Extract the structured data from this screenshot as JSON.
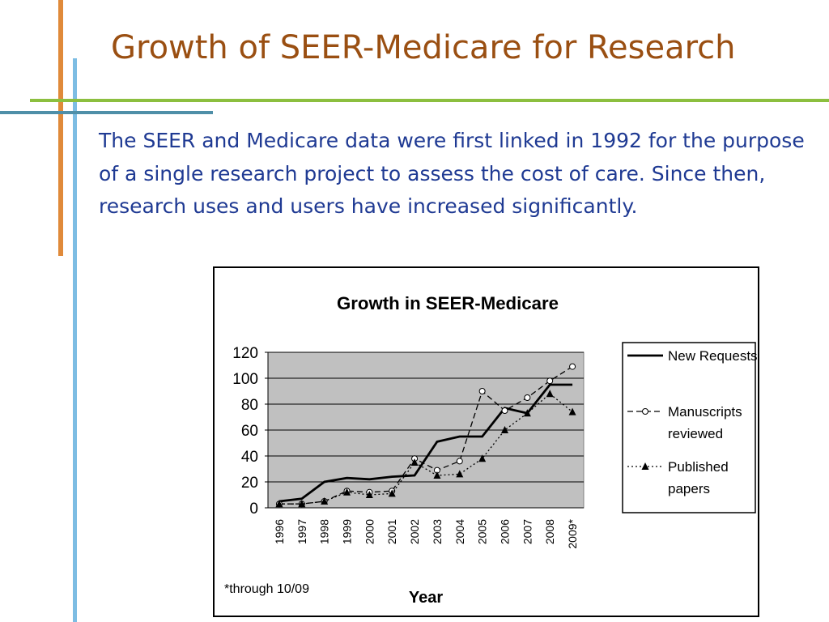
{
  "slide": {
    "title": "Growth of SEER-Medicare for Research",
    "body": "The SEER and Medicare data were first linked in 1992 for the purpose of a single research project to assess the cost of care. Since then, research uses and users  have increased significantly."
  },
  "colors": {
    "title": "#9a4f12",
    "body": "#1f3a93",
    "accent_orange": "#e08a3a",
    "accent_green": "#8cbf3f",
    "accent_blue": "#7dbde3",
    "accent_teal": "#4f8fa8",
    "plot_background": "#c0c0c0"
  },
  "chart_data": {
    "type": "line",
    "title": "Growth in SEER-Medicare",
    "xlabel": "Year",
    "ylabel": "",
    "categories": [
      "1996",
      "1997",
      "1998",
      "1999",
      "2000",
      "2001",
      "2002",
      "2003",
      "2004",
      "2005",
      "2006",
      "2007",
      "2008",
      "2009*"
    ],
    "ylim": [
      0,
      120
    ],
    "yticks": [
      0,
      20,
      40,
      60,
      80,
      100,
      120
    ],
    "grid": true,
    "legend_position": "right",
    "footnote": "*through 10/09",
    "series": [
      {
        "name": "New Requests",
        "style": "solid",
        "marker": "none",
        "values": [
          5,
          7,
          20,
          23,
          22,
          24,
          25,
          51,
          55,
          55,
          77,
          73,
          95,
          95
        ]
      },
      {
        "name": "Manuscripts reviewed",
        "style": "dashed",
        "marker": "circle",
        "values": [
          3,
          3,
          5,
          13,
          12,
          13,
          38,
          29,
          36,
          90,
          75,
          85,
          98,
          109
        ]
      },
      {
        "name": "Published papers",
        "style": "dotted",
        "marker": "triangle",
        "values": [
          3,
          3,
          5,
          12,
          10,
          11,
          35,
          25,
          26,
          38,
          60,
          73,
          88,
          74
        ]
      }
    ]
  }
}
